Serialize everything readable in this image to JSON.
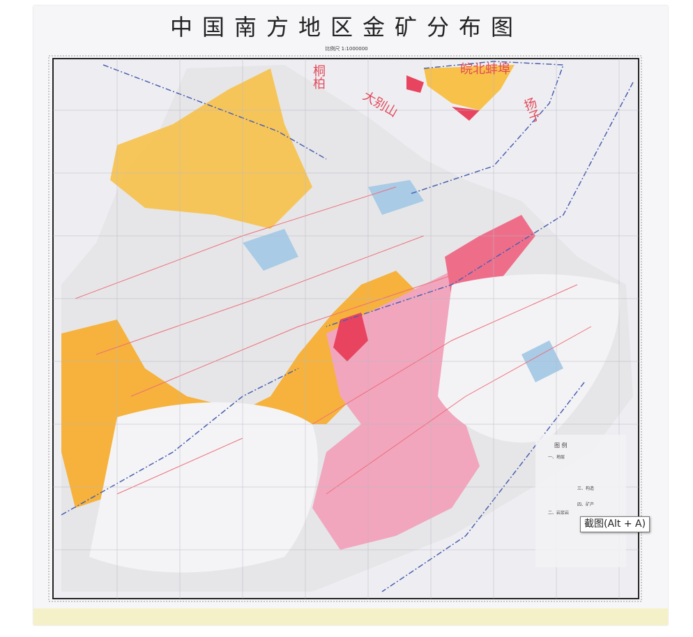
{
  "map": {
    "title": "中国南方地区金矿分布图",
    "scale": "比例尺 1:1000000",
    "region_labels": [
      "皖北蚌埠",
      "桐柏",
      "大别山",
      "扬子"
    ],
    "legend": {
      "title": "图 例",
      "sections": [
        "一、地层",
        "二、岩浆岩",
        "三、构造",
        "四、矿产"
      ]
    },
    "colors": {
      "strata": "#f7b944",
      "granite": "#f2a5bd",
      "intrusive": "#e8445f",
      "water": "#a9cbe6",
      "faults": "#ee6e7a",
      "background": "#f1f0f2"
    }
  },
  "tooltip": {
    "text": "截图(Alt + A)"
  }
}
